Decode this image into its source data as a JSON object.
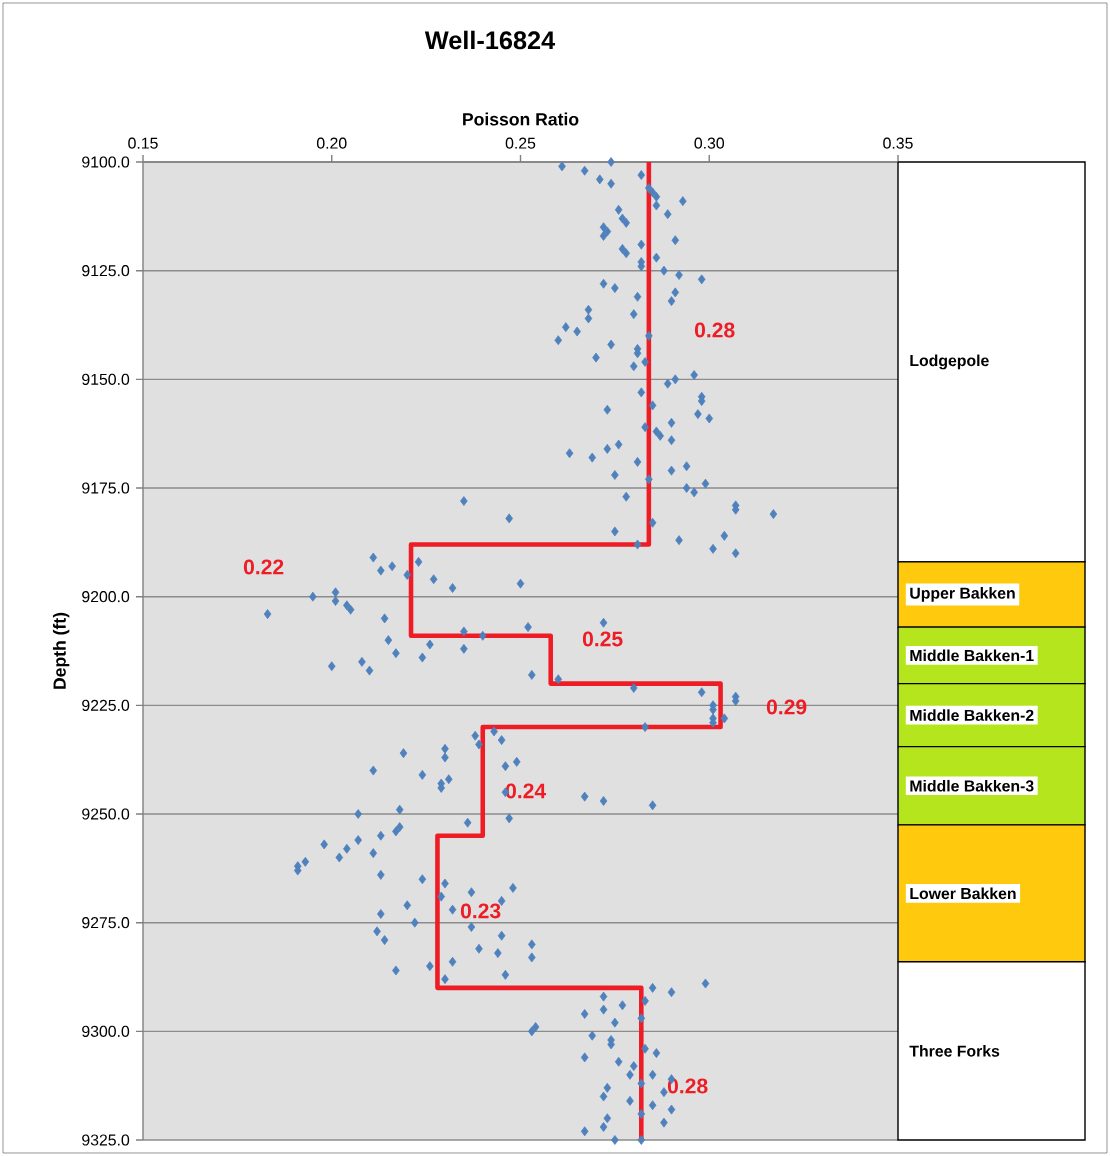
{
  "chart_data": [
    {
      "type": "scatter",
      "title": "Well-16824",
      "xlabel": "Poisson Ratio",
      "ylabel": "Depth (ft)",
      "xlim": [
        0.15,
        0.35
      ],
      "xticks": [
        0.15,
        {
          "value": 0.2,
          "label": "0.20"
        },
        0.25,
        {
          "value": 0.3,
          "label": "0.30"
        },
        0.35
      ],
      "ylim": [
        9325,
        9100
      ],
      "yticks": [
        {
          "value": 9100,
          "label": "9100.0"
        },
        {
          "value": 9125,
          "label": "9125.0"
        },
        {
          "value": 9150,
          "label": "9150.0"
        },
        {
          "value": 9175,
          "label": "9175.0"
        },
        {
          "value": 9200,
          "label": "9200.0"
        },
        {
          "value": 9225,
          "label": "9225.0"
        },
        {
          "value": 9250,
          "label": "9250.0"
        },
        {
          "value": 9275,
          "label": "9275.0"
        },
        {
          "value": 9300,
          "label": "9300.0"
        },
        {
          "value": 9325,
          "label": "9325.0"
        }
      ],
      "grid": "y",
      "series": [
        {
          "type": "scatter",
          "color": "#4f81bd",
          "marker": "diamond",
          "x": [
            0.261,
            0.267,
            0.271,
            0.274,
            0.274,
            0.282,
            0.284,
            0.285,
            0.286,
            0.293,
            0.286,
            0.289,
            0.276,
            0.277,
            0.278,
            0.272,
            0.273,
            0.272,
            0.291,
            0.282,
            0.277,
            0.278,
            0.286,
            0.282,
            0.282,
            0.288,
            0.292,
            0.298,
            0.272,
            0.275,
            0.281,
            0.291,
            0.29,
            0.268,
            0.268,
            0.28,
            0.262,
            0.265,
            0.26,
            0.284,
            0.274,
            0.27,
            0.281,
            0.281,
            0.28,
            0.283,
            0.291,
            0.289,
            0.296,
            0.282,
            0.298,
            0.298,
            0.273,
            0.285,
            0.29,
            0.297,
            0.3,
            0.283,
            0.286,
            0.287,
            0.29,
            0.276,
            0.273,
            0.263,
            0.269,
            0.281,
            0.294,
            0.29,
            0.275,
            0.284,
            0.299,
            0.294,
            0.296,
            0.278,
            0.235,
            0.247,
            0.307,
            0.307,
            0.317,
            0.285,
            0.275,
            0.304,
            0.292,
            0.281,
            0.301,
            0.307,
            0.211,
            0.213,
            0.216,
            0.223,
            0.22,
            0.227,
            0.232,
            0.25,
            0.183,
            0.195,
            0.201,
            0.201,
            0.204,
            0.205,
            0.214,
            0.215,
            0.217,
            0.2,
            0.208,
            0.21,
            0.224,
            0.226,
            0.235,
            0.235,
            0.24,
            0.252,
            0.272,
            0.253,
            0.26,
            0.28,
            0.298,
            0.307,
            0.307,
            0.301,
            0.301,
            0.301,
            0.304,
            0.283,
            0.301,
            0.238,
            0.243,
            0.245,
            0.239,
            0.23,
            0.23,
            0.219,
            0.211,
            0.224,
            0.231,
            0.229,
            0.229,
            0.246,
            0.249,
            0.246,
            0.267,
            0.272,
            0.285,
            0.207,
            0.218,
            0.236,
            0.247,
            0.218,
            0.217,
            0.213,
            0.207,
            0.198,
            0.204,
            0.202,
            0.211,
            0.193,
            0.191,
            0.191,
            0.213,
            0.224,
            0.23,
            0.237,
            0.248,
            0.229,
            0.245,
            0.22,
            0.232,
            0.213,
            0.222,
            0.212,
            0.214,
            0.237,
            0.245,
            0.239,
            0.244,
            0.253,
            0.253,
            0.232,
            0.226,
            0.217,
            0.246,
            0.23,
            0.272,
            0.277,
            0.285,
            0.29,
            0.299,
            0.267,
            0.272,
            0.275,
            0.282,
            0.283,
            0.254,
            0.253,
            0.269,
            0.274,
            0.274,
            0.267,
            0.283,
            0.286,
            0.276,
            0.28,
            0.279,
            0.285,
            0.29,
            0.273,
            0.272,
            0.279,
            0.288,
            0.285,
            0.29,
            0.282,
            0.282,
            0.273,
            0.272,
            0.288,
            0.267,
            0.275,
            0.282
          ],
          "values": [
            9101,
            9102,
            9104,
            9100,
            9105,
            9103,
            9106,
            9107,
            9108,
            9109,
            9110,
            9112,
            9111,
            9113,
            9114,
            9115,
            9116,
            9117,
            9118,
            9119,
            9120,
            9121,
            9122,
            9123,
            9124,
            9125,
            9126,
            9127,
            9128,
            9129,
            9131,
            9130,
            9132,
            9134,
            9136,
            9135,
            9138,
            9139,
            9141,
            9140,
            9142,
            9145,
            9143,
            9144,
            9147,
            9146,
            9150,
            9151,
            9149,
            9153,
            9154,
            9155,
            9157,
            9156,
            9160,
            9158,
            9159,
            9161,
            9162,
            9163,
            9164,
            9165,
            9166,
            9167,
            9168,
            9169,
            9170,
            9171,
            9172,
            9173,
            9174,
            9175,
            9176,
            9177,
            9178,
            9182,
            9179,
            9180,
            9181,
            9183,
            9185,
            9186,
            9187,
            9188,
            9189,
            9190,
            9191,
            9194,
            9193,
            9192,
            9195,
            9196,
            9198,
            9197,
            9204,
            9200,
            9199,
            9201,
            9202,
            9203,
            9205,
            9210,
            9213,
            9216,
            9215,
            9217,
            9214,
            9211,
            9212,
            9208,
            9209,
            9207,
            9206,
            9218,
            9219,
            9221,
            9222,
            9223,
            9224,
            9225,
            9226,
            9228,
            9228,
            9230,
            9229,
            9232,
            9231,
            9233,
            9234,
            9235,
            9237,
            9236,
            9240,
            9241,
            9242,
            9243,
            9244,
            9239,
            9238,
            9245,
            9246,
            9247,
            9248,
            9250,
            9249,
            9252,
            9251,
            9253,
            9254,
            9255,
            9256,
            9257,
            9258,
            9260,
            9259,
            9261,
            9262,
            9263,
            9264,
            9265,
            9266,
            9268,
            9267,
            9269,
            9270,
            9271,
            9272,
            9273,
            9275,
            9277,
            9279,
            9276,
            9278,
            9281,
            9282,
            9280,
            9283,
            9284,
            9285,
            9286,
            9287,
            9288,
            9292,
            9294,
            9290,
            9291,
            9289,
            9296,
            9295,
            9298,
            9297,
            9293,
            9299,
            9300,
            9301,
            9303,
            9302,
            9306,
            9304,
            9305,
            9307,
            9308,
            9310,
            9310,
            9311,
            9313,
            9315,
            9316,
            9314,
            9317,
            9318,
            9312,
            9319,
            9320,
            9322,
            9321,
            9323,
            9325,
            9325
          ]
        },
        {
          "type": "line",
          "color": "#ee1c25",
          "marker": "none",
          "x": [
            0.284,
            0.284,
            0.221,
            0.221,
            0.258,
            0.258,
            0.303,
            0.303,
            0.24,
            0.24,
            0.228,
            0.228,
            0.282,
            0.282
          ],
          "values": [
            9100,
            9188,
            9188,
            9209,
            9209,
            9220,
            9220,
            9230,
            9230,
            9255,
            9255,
            9290,
            9290,
            9325
          ]
        }
      ],
      "annotations": [
        "0.28",
        "0.22",
        "0.25",
        "0.29",
        "0.24",
        "0.23",
        "0.28"
      ]
    },
    {
      "type": "bar",
      "categories": [
        null
      ],
      "ylim": [
        9325,
        9100
      ],
      "tick_labels": false,
      "series": [
        {
          "name": "Lodgepole",
          "color": "#ffffff",
          "base": [
            9100
          ],
          "values": [
            92
          ]
        },
        {
          "name": "Upper Bakken",
          "color": "#ffc90e",
          "base": [
            9192
          ],
          "values": [
            15
          ]
        },
        {
          "name": "Middle Bakken-1",
          "color": "#b5e61d",
          "base": [
            9207
          ],
          "values": [
            13
          ]
        },
        {
          "name": "Middle Bakken-2",
          "color": "#b5e61d",
          "base": [
            9220
          ],
          "values": [
            14.5
          ]
        },
        {
          "name": "Middle Bakken-3",
          "color": "#b5e61d",
          "base": [
            9234.5
          ],
          "values": [
            18
          ]
        },
        {
          "name": "Lower Bakken",
          "color": "#ffc90e",
          "base": [
            9252.5
          ],
          "values": [
            31.5
          ]
        },
        {
          "name": "Three Forks",
          "color": "#ffffff",
          "base": [
            9284
          ],
          "values": [
            41
          ]
        }
      ]
    }
  ]
}
